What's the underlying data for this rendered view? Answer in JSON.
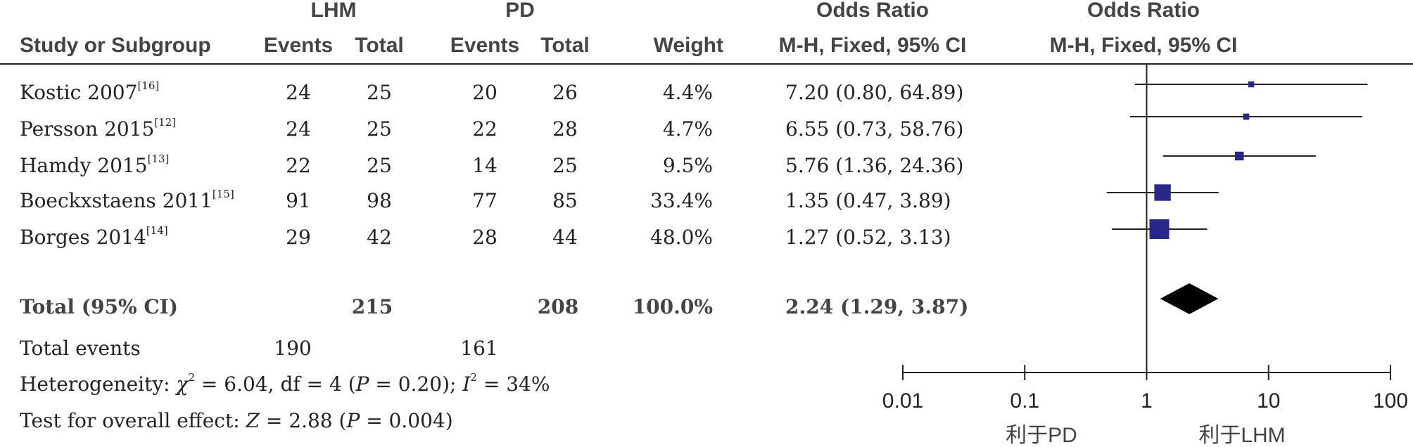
{
  "header": {
    "group1": "LHM",
    "group2": "PD",
    "or_top1": "Odds Ratio",
    "or_top2": "Odds Ratio",
    "col_study": "Study or Subgroup",
    "col_events1": "Events",
    "col_total1": "Total",
    "col_events2": "Events",
    "col_total2": "Total",
    "col_weight": "Weight",
    "col_ci1": "M-H, Fixed, 95% CI",
    "col_ci2": "M-H, Fixed, 95% CI"
  },
  "studies": [
    {
      "name": "Kostic 2007",
      "ref": "[16]",
      "e1": "24",
      "t1": "25",
      "e2": "20",
      "t2": "26",
      "weight": "4.4%",
      "ci": "7.20 (0.80, 64.89)"
    },
    {
      "name": "Persson 2015",
      "ref": "[12]",
      "e1": "24",
      "t1": "25",
      "e2": "22",
      "t2": "28",
      "weight": "4.7%",
      "ci": "6.55 (0.73, 58.76)"
    },
    {
      "name": "Hamdy 2015",
      "ref": "[13]",
      "e1": "22",
      "t1": "25",
      "e2": "14",
      "t2": "25",
      "weight": "9.5%",
      "ci": "5.76 (1.36, 24.36)"
    },
    {
      "name": "Boeckxstaens 2011",
      "ref": "[15]",
      "e1": "91",
      "t1": "98",
      "e2": "77",
      "t2": "85",
      "weight": "33.4%",
      "ci": "1.35 (0.47, 3.89)"
    },
    {
      "name": "Borges 2014",
      "ref": "[14]",
      "e1": "29",
      "t1": "42",
      "e2": "28",
      "t2": "44",
      "weight": "48.0%",
      "ci": "1.27 (0.52, 3.13)"
    }
  ],
  "total": {
    "label": "Total (95% CI)",
    "t1": "215",
    "t2": "208",
    "weight": "100.0%",
    "ci": "2.24 (1.29, 3.87)"
  },
  "total_events": {
    "label": "Total events",
    "e1": "190",
    "e2": "161"
  },
  "heterogeneity": {
    "prefix": "Heterogeneity: ",
    "chi": "χ",
    "chi_sup": "2",
    "chi_rest": " = 6.04, df = 4 (",
    "p": "P",
    "p_rest": " = 0.20); ",
    "i": "I",
    "i_sup": "2",
    "i_rest": " = 34%"
  },
  "overall": {
    "prefix": "Test for overall effect: ",
    "z": "Z",
    "z_rest": " = 2.88 (",
    "p": "P",
    "p_rest": " = 0.004)"
  },
  "axis": {
    "favours_left": "利于PD",
    "favours_right": "利于LHM"
  },
  "colors": {
    "marker": "#27288a",
    "diamond": "#000000",
    "line": "#222222"
  },
  "chart_data": {
    "type": "scatter",
    "scale": "log",
    "xlim": [
      0.01,
      100
    ],
    "x_ticks": [
      "0.01",
      "0.1",
      "1",
      "10",
      "100"
    ],
    "null_line": 1,
    "studies": [
      {
        "name": "Kostic 2007",
        "or": 7.2,
        "lo": 0.8,
        "hi": 64.89,
        "weight": 4.4
      },
      {
        "name": "Persson 2015",
        "or": 6.55,
        "lo": 0.73,
        "hi": 58.76,
        "weight": 4.7
      },
      {
        "name": "Hamdy 2015",
        "or": 5.76,
        "lo": 1.36,
        "hi": 24.36,
        "weight": 9.5
      },
      {
        "name": "Boeckxstaens 2011",
        "or": 1.35,
        "lo": 0.47,
        "hi": 3.89,
        "weight": 33.4
      },
      {
        "name": "Borges 2014",
        "or": 1.27,
        "lo": 0.52,
        "hi": 3.13,
        "weight": 48.0
      }
    ],
    "pooled": {
      "or": 2.24,
      "lo": 1.29,
      "hi": 3.87
    }
  }
}
